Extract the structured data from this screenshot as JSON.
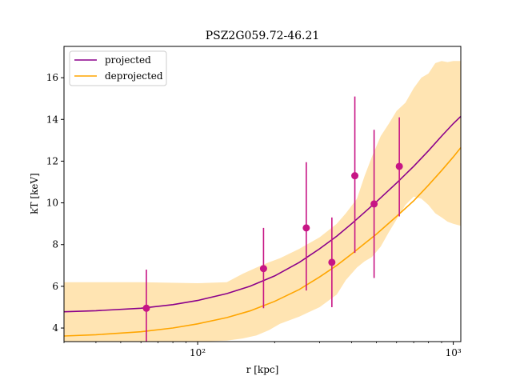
{
  "chart_data": {
    "type": "line",
    "title": "PSZ2G059.72-46.21",
    "xlabel": "r [kpc]",
    "ylabel": "kT [keV]",
    "x_scale": "log",
    "xlim": [
      30,
      1070
    ],
    "ylim": [
      3.35,
      17.5
    ],
    "x_ticks": [
      {
        "value": 100,
        "label": "10²"
      },
      {
        "value": 1000,
        "label": "10³"
      }
    ],
    "y_ticks": [
      4,
      6,
      8,
      10,
      12,
      14,
      16
    ],
    "legend_position": "top-left",
    "grid": false,
    "series": [
      {
        "name": "projected",
        "color": "#8b008b",
        "x": [
          30,
          40,
          60,
          80,
          100,
          130,
          160,
          200,
          250,
          300,
          350,
          400,
          450,
          500,
          600,
          700,
          800,
          900,
          1000,
          1070
        ],
        "y": [
          4.78,
          4.83,
          4.95,
          5.12,
          5.32,
          5.65,
          6.0,
          6.5,
          7.15,
          7.8,
          8.4,
          9.0,
          9.55,
          10.05,
          10.95,
          11.75,
          12.5,
          13.2,
          13.8,
          14.15
        ]
      },
      {
        "name": "deprojected",
        "color": "#ffa500",
        "x": [
          30,
          40,
          60,
          80,
          100,
          130,
          160,
          200,
          250,
          300,
          350,
          400,
          450,
          500,
          600,
          700,
          800,
          900,
          1000,
          1070
        ],
        "y": [
          3.62,
          3.68,
          3.82,
          4.0,
          4.2,
          4.5,
          4.82,
          5.28,
          5.85,
          6.45,
          7.0,
          7.55,
          8.05,
          8.5,
          9.35,
          10.1,
          10.85,
          11.55,
          12.2,
          12.65
        ]
      }
    ],
    "band": {
      "color": "#ffa500",
      "opacity": 0.3,
      "x": [
        30,
        60,
        100,
        130,
        150,
        170,
        190,
        210,
        250,
        300,
        350,
        380,
        420,
        450,
        480,
        520,
        560,
        600,
        650,
        700,
        750,
        800,
        850,
        900,
        950,
        1000,
        1070
      ],
      "upper": [
        6.2,
        6.2,
        6.15,
        6.2,
        6.6,
        6.9,
        7.15,
        7.35,
        7.8,
        8.35,
        9.0,
        9.5,
        10.2,
        11.3,
        12.2,
        13.2,
        13.8,
        14.4,
        14.8,
        15.5,
        16.0,
        16.2,
        16.7,
        16.8,
        16.75,
        16.8,
        16.8
      ],
      "lower": [
        3.35,
        3.35,
        3.35,
        3.4,
        3.5,
        3.65,
        3.9,
        4.2,
        4.55,
        5.0,
        5.6,
        6.3,
        6.9,
        7.2,
        7.4,
        7.9,
        8.6,
        9.2,
        9.9,
        10.3,
        10.2,
        9.9,
        9.5,
        9.3,
        9.1,
        9.0,
        8.9
      ]
    },
    "points": {
      "color": "#c71585",
      "data": [
        {
          "x": 63,
          "y": 4.95,
          "ylo": 3.35,
          "yhi": 6.8
        },
        {
          "x": 181,
          "y": 6.85,
          "ylo": 4.95,
          "yhi": 8.8
        },
        {
          "x": 266,
          "y": 8.8,
          "ylo": 5.8,
          "yhi": 11.95
        },
        {
          "x": 335,
          "y": 7.15,
          "ylo": 5.0,
          "yhi": 9.3
        },
        {
          "x": 412,
          "y": 11.3,
          "ylo": 7.6,
          "yhi": 15.1
        },
        {
          "x": 490,
          "y": 9.95,
          "ylo": 6.4,
          "yhi": 13.5
        },
        {
          "x": 615,
          "y": 11.75,
          "ylo": 9.35,
          "yhi": 14.1
        }
      ]
    }
  }
}
